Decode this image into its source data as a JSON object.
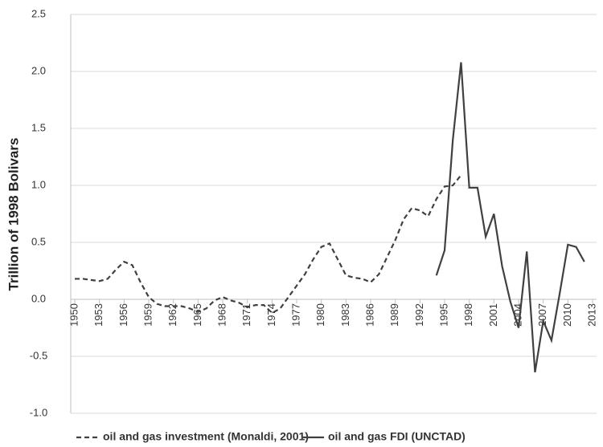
{
  "chart_data": {
    "type": "line",
    "y_label": "Trillion of 1998 Bolivars",
    "x": [
      1950,
      1951,
      1952,
      1953,
      1954,
      1955,
      1956,
      1957,
      1958,
      1959,
      1960,
      1961,
      1962,
      1963,
      1964,
      1965,
      1966,
      1967,
      1968,
      1969,
      1970,
      1971,
      1972,
      1973,
      1974,
      1975,
      1976,
      1977,
      1978,
      1979,
      1980,
      1981,
      1982,
      1983,
      1984,
      1985,
      1986,
      1987,
      1988,
      1989,
      1990,
      1991,
      1992,
      1993,
      1994,
      1995,
      1996,
      1997,
      1998,
      1999,
      2000,
      2001,
      2002,
      2003,
      2004,
      2005,
      2006,
      2007,
      2008,
      2009,
      2010,
      2011,
      2012
    ],
    "series": [
      {
        "name": "oil and gas investment (Monaldi, 2001)",
        "color": "#404040",
        "dash": true,
        "values": [
          0.18,
          0.18,
          0.17,
          0.16,
          0.18,
          0.26,
          0.33,
          0.3,
          0.15,
          0.02,
          -0.04,
          -0.06,
          -0.06,
          -0.06,
          -0.08,
          -0.11,
          -0.08,
          -0.01,
          0.02,
          -0.01,
          -0.03,
          -0.07,
          -0.05,
          -0.05,
          -0.12,
          -0.08,
          0.02,
          0.12,
          0.22,
          0.35,
          0.46,
          0.49,
          0.35,
          0.21,
          0.19,
          0.18,
          0.15,
          0.22,
          0.37,
          0.52,
          0.7,
          0.8,
          0.78,
          0.73,
          0.88,
          0.99,
          1.0,
          1.09,
          null,
          null,
          null,
          null,
          null,
          null,
          null,
          null,
          null,
          null,
          null,
          null,
          null,
          null,
          null
        ]
      },
      {
        "name": "oil and gas FDI (UNCTAD)",
        "color": "#404040",
        "dash": false,
        "values": [
          null,
          null,
          null,
          null,
          null,
          null,
          null,
          null,
          null,
          null,
          null,
          null,
          null,
          null,
          null,
          null,
          null,
          null,
          null,
          null,
          null,
          null,
          null,
          null,
          null,
          null,
          null,
          null,
          null,
          null,
          null,
          null,
          null,
          null,
          null,
          null,
          null,
          null,
          null,
          null,
          null,
          null,
          null,
          null,
          0.21,
          0.43,
          1.4,
          2.08,
          0.98,
          0.98,
          0.55,
          0.75,
          0.29,
          -0.02,
          -0.25,
          0.42,
          -0.64,
          -0.19,
          -0.36,
          0.05,
          0.48,
          0.46,
          0.33
        ]
      }
    ],
    "xlim": [
      1950,
      2013
    ],
    "xticks": [
      1950,
      1953,
      1956,
      1959,
      1962,
      1965,
      1968,
      1971,
      1974,
      1977,
      1980,
      1983,
      1986,
      1989,
      1992,
      1995,
      1998,
      2001,
      2004,
      2007,
      2010,
      2013
    ],
    "ylim": [
      -1.0,
      2.5
    ],
    "yticks": [
      {
        "value": -1.0,
        "label": "-1.0"
      },
      -0.5,
      {
        "value": 0.0,
        "label": "0.0"
      },
      0.5,
      {
        "value": 1.0,
        "label": "1.0"
      },
      1.5,
      {
        "value": 2.0,
        "label": "2.0"
      },
      2.5
    ],
    "grid": true
  }
}
